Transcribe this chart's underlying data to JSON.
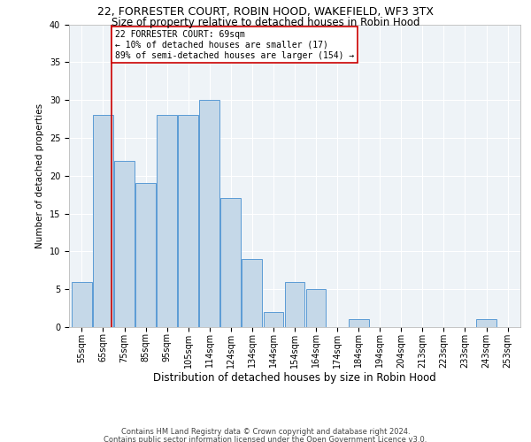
{
  "title": "22, FORRESTER COURT, ROBIN HOOD, WAKEFIELD, WF3 3TX",
  "subtitle": "Size of property relative to detached houses in Robin Hood",
  "xlabel": "Distribution of detached houses by size in Robin Hood",
  "ylabel": "Number of detached properties",
  "categories": [
    "55sqm",
    "65sqm",
    "75sqm",
    "85sqm",
    "95sqm",
    "105sqm",
    "114sqm",
    "124sqm",
    "134sqm",
    "144sqm",
    "154sqm",
    "164sqm",
    "174sqm",
    "184sqm",
    "194sqm",
    "204sqm",
    "213sqm",
    "223sqm",
    "233sqm",
    "243sqm",
    "253sqm"
  ],
  "values": [
    6,
    28,
    22,
    19,
    28,
    28,
    30,
    17,
    9,
    2,
    6,
    5,
    0,
    1,
    0,
    0,
    0,
    0,
    0,
    1,
    0
  ],
  "bar_color": "#c5d8e8",
  "bar_edge_color": "#5b9bd5",
  "bar_width": 0.95,
  "property_line_x": 1.4,
  "annotation_title": "22 FORRESTER COURT: 69sqm",
  "annotation_line1": "← 10% of detached houses are smaller (17)",
  "annotation_line2": "89% of semi-detached houses are larger (154) →",
  "annotation_box_color": "#ffffff",
  "annotation_box_edge_color": "#cc0000",
  "line_color": "#cc0000",
  "ylim": [
    0,
    40
  ],
  "yticks": [
    0,
    5,
    10,
    15,
    20,
    25,
    30,
    35,
    40
  ],
  "background_color": "#eef3f7",
  "grid_color": "#ffffff",
  "footer1": "Contains HM Land Registry data © Crown copyright and database right 2024.",
  "footer2": "Contains public sector information licensed under the Open Government Licence v3.0.",
  "title_fontsize": 9,
  "subtitle_fontsize": 8.5,
  "xlabel_fontsize": 8.5,
  "ylabel_fontsize": 7.5,
  "tick_fontsize": 7,
  "footer_fontsize": 6,
  "annotation_fontsize": 7
}
